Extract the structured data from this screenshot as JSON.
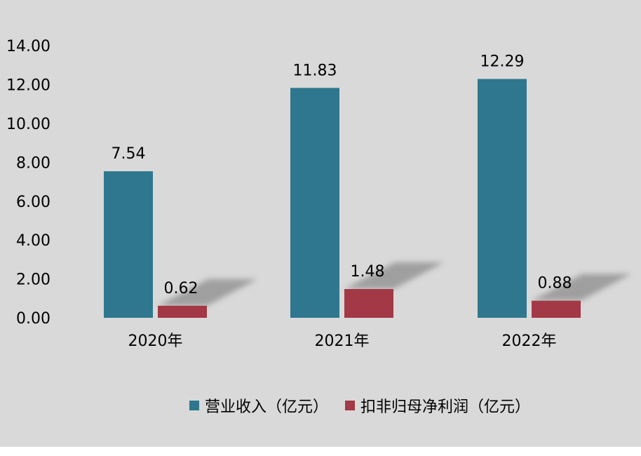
{
  "colors": {
    "background": "#d9d9d9",
    "revenue": "#2e778e",
    "profit": "#a33846",
    "shadow": "#8c8c8c"
  },
  "chart_data": {
    "type": "bar",
    "title": "",
    "xlabel": "",
    "ylabel": "",
    "ylim": [
      0,
      14
    ],
    "yticks": [
      "0.00",
      "2.00",
      "4.00",
      "6.00",
      "8.00",
      "10.00",
      "12.00",
      "14.00"
    ],
    "categories": [
      "2020年",
      "2021年",
      "2022年"
    ],
    "series": [
      {
        "name": "营业收入（亿元）",
        "values": [
          7.54,
          11.83,
          12.29
        ],
        "labels": [
          "7.54",
          "11.83",
          "12.29"
        ]
      },
      {
        "name": "扣非归母净利润（亿元）",
        "values": [
          0.62,
          1.48,
          0.88
        ],
        "labels": [
          "0.62",
          "1.48",
          "0.88"
        ]
      }
    ],
    "grid": false,
    "legend_position": "bottom"
  }
}
